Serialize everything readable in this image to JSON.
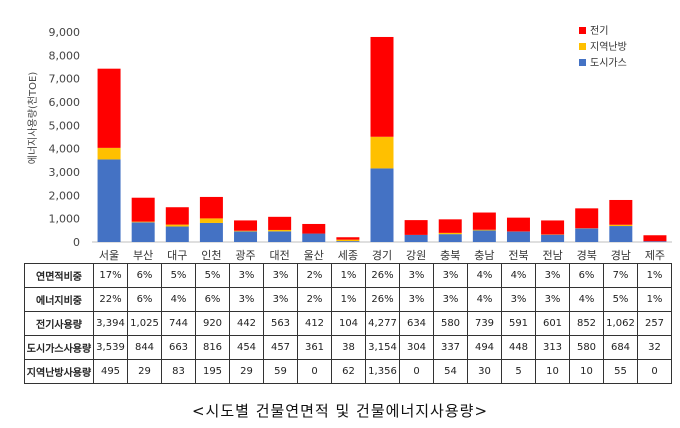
{
  "chart_data": {
    "type": "bar",
    "stacked": true,
    "ylabel": "에너지사용량(천TOE)",
    "ylim": [
      0,
      9000
    ],
    "yticks": [
      0,
      1000,
      2000,
      3000,
      4000,
      5000,
      6000,
      7000,
      8000,
      9000
    ],
    "ytick_labels": [
      "0",
      "1,000",
      "2,000",
      "3,000",
      "4,000",
      "5,000",
      "6,000",
      "7,000",
      "8,000",
      "9,000"
    ],
    "grid": false,
    "legend_position": "top-right",
    "categories": [
      "서울",
      "부산",
      "대구",
      "인천",
      "광주",
      "대전",
      "울산",
      "세종",
      "경기",
      "강원",
      "충북",
      "충남",
      "전북",
      "전남",
      "경북",
      "경남",
      "제주"
    ],
    "series": [
      {
        "name": "도시가스",
        "color": "#4472c4",
        "values": [
          3539,
          844,
          663,
          816,
          454,
          457,
          361,
          38,
          3154,
          304,
          337,
          494,
          448,
          313,
          580,
          684,
          32
        ]
      },
      {
        "name": "지역난방",
        "color": "#ffc000",
        "values": [
          495,
          29,
          83,
          195,
          29,
          59,
          0,
          62,
          1356,
          0,
          54,
          30,
          5,
          10,
          10,
          55,
          0
        ]
      },
      {
        "name": "전기",
        "color": "#ff0000",
        "values": [
          3394,
          1025,
          744,
          920,
          442,
          563,
          412,
          104,
          4277,
          634,
          580,
          739,
          591,
          601,
          852,
          1062,
          257
        ]
      }
    ],
    "legend_order": [
      "전기",
      "지역난방",
      "도시가스"
    ]
  },
  "table": {
    "rows": [
      {
        "label": "연면적비중",
        "values": [
          "17%",
          "6%",
          "5%",
          "5%",
          "3%",
          "3%",
          "2%",
          "1%",
          "26%",
          "3%",
          "3%",
          "4%",
          "4%",
          "3%",
          "6%",
          "7%",
          "1%"
        ]
      },
      {
        "label": "에너지비중",
        "values": [
          "22%",
          "6%",
          "4%",
          "6%",
          "3%",
          "3%",
          "2%",
          "1%",
          "26%",
          "3%",
          "3%",
          "4%",
          "3%",
          "3%",
          "4%",
          "5%",
          "1%"
        ]
      },
      {
        "label": "전기사용량",
        "values": [
          "3,394",
          "1,025",
          "744",
          "920",
          "442",
          "563",
          "412",
          "104",
          "4,277",
          "634",
          "580",
          "739",
          "591",
          "601",
          "852",
          "1,062",
          "257"
        ]
      },
      {
        "label": "도시가스사용량",
        "values": [
          "3,539",
          "844",
          "663",
          "816",
          "454",
          "457",
          "361",
          "38",
          "3,154",
          "304",
          "337",
          "494",
          "448",
          "313",
          "580",
          "684",
          "32"
        ]
      },
      {
        "label": "지역난방사용량",
        "values": [
          "495",
          "29",
          "83",
          "195",
          "29",
          "59",
          "0",
          "62",
          "1,356",
          "0",
          "54",
          "30",
          "5",
          "10",
          "10",
          "55",
          "0"
        ]
      }
    ]
  },
  "caption": "<시도별 건물연면적 및 건물에너지사용량>"
}
